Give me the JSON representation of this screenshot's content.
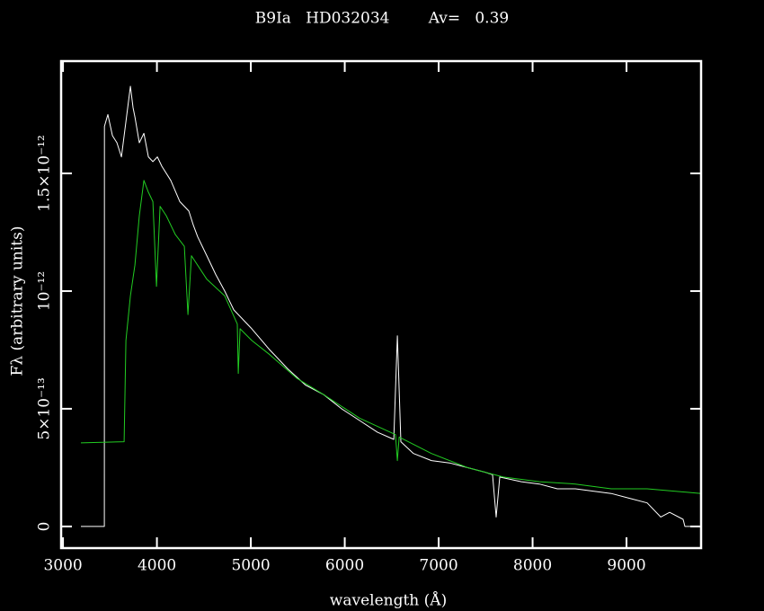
{
  "chart_data": {
    "type": "line",
    "title": "B9Ia   HD032034        Av=   0.39",
    "x_label": "wavelength (Å)",
    "y_label": "Fλ (arbitrary units)",
    "xlim": [
      2980,
      9794
    ],
    "ylim": [
      -9.2e-14,
      1.977e-12
    ],
    "xticks": [
      3000,
      4000,
      5000,
      6000,
      7000,
      8000,
      9000
    ],
    "yticks": [
      0,
      {
        "value": 5e-13,
        "label": "5×10⁻¹³"
      },
      {
        "value": 1e-12,
        "label": "10⁻¹²"
      },
      {
        "value": 1.5e-12,
        "label": "1.5×10⁻¹²"
      }
    ],
    "series": [
      {
        "color": "#ffffff",
        "x": [
          3191,
          3440,
          3441,
          3478,
          3526,
          3574,
          3622,
          3670,
          3718,
          3746,
          3766,
          3813,
          3861,
          3909,
          3957,
          4005,
          4053,
          4148,
          4244,
          4340,
          4388,
          4435,
          4531,
          4627,
          4722,
          4818,
          4914,
          5010,
          5201,
          5392,
          5584,
          5775,
          5966,
          6158,
          6349,
          6522,
          6560,
          6598,
          6732,
          6923,
          7115,
          7306,
          7497,
          7574,
          7612,
          7650,
          7880,
          8072,
          8263,
          8455,
          8646,
          8837,
          9029,
          9220,
          9364,
          9459,
          9603,
          9622,
          9794
        ],
        "values": [
          0,
          0,
          1.7e-12,
          1.75e-12,
          1.66e-12,
          1.63e-12,
          1.57e-12,
          1.72e-12,
          1.87e-12,
          1.78e-12,
          1.74e-12,
          1.63e-12,
          1.67e-12,
          1.57e-12,
          1.55e-12,
          1.57e-12,
          1.53e-12,
          1.47e-12,
          1.38e-12,
          1.34e-12,
          1.28e-12,
          1.23e-12,
          1.15e-12,
          1.07e-12,
          1e-12,
          9.2e-13,
          8.8e-13,
          8.4e-13,
          7.5e-13,
          6.7e-13,
          6e-13,
          5.6e-13,
          5e-13,
          4.5e-13,
          4e-13,
          3.7e-13,
          8.1e-13,
          3.6e-13,
          3.1e-13,
          2.8e-13,
          2.7e-13,
          2.5e-13,
          2.3e-13,
          2.2e-13,
          4e-14,
          2.1e-13,
          1.9e-13,
          1.8e-13,
          1.6e-13,
          1.6e-13,
          1.5e-13,
          1.4e-13,
          1.2e-13,
          1e-13,
          4e-14,
          6e-14,
          3e-14,
          0,
          0
        ]
      },
      {
        "color": "#22cc22",
        "x": [
          3191,
          3651,
          3670,
          3718,
          3766,
          3813,
          3861,
          3909,
          3957,
          3995,
          4034,
          4100,
          4196,
          4292,
          4330,
          4368,
          4531,
          4722,
          4856,
          4866,
          4885,
          5010,
          5201,
          5488,
          5775,
          6158,
          6540,
          6560,
          6579,
          6923,
          7306,
          7689,
          8072,
          8455,
          8837,
          9220,
          9794
        ],
        "values": [
          3.55e-13,
          3.6e-13,
          7.9e-13,
          9.8e-13,
          1.11e-12,
          1.32e-12,
          1.47e-12,
          1.42e-12,
          1.38e-12,
          1.02e-12,
          1.36e-12,
          1.32e-12,
          1.24e-12,
          1.19e-12,
          9e-13,
          1.15e-12,
          1.05e-12,
          9.8e-13,
          8.6e-13,
          6.5e-13,
          8.4e-13,
          7.9e-13,
          7.3e-13,
          6.3e-13,
          5.6e-13,
          4.6e-13,
          3.9e-13,
          2.8e-13,
          3.8e-13,
          3.1e-13,
          2.5e-13,
          2.1e-13,
          1.9e-13,
          1.8e-13,
          1.6e-13,
          1.6e-13,
          1.4e-13
        ]
      }
    ]
  }
}
